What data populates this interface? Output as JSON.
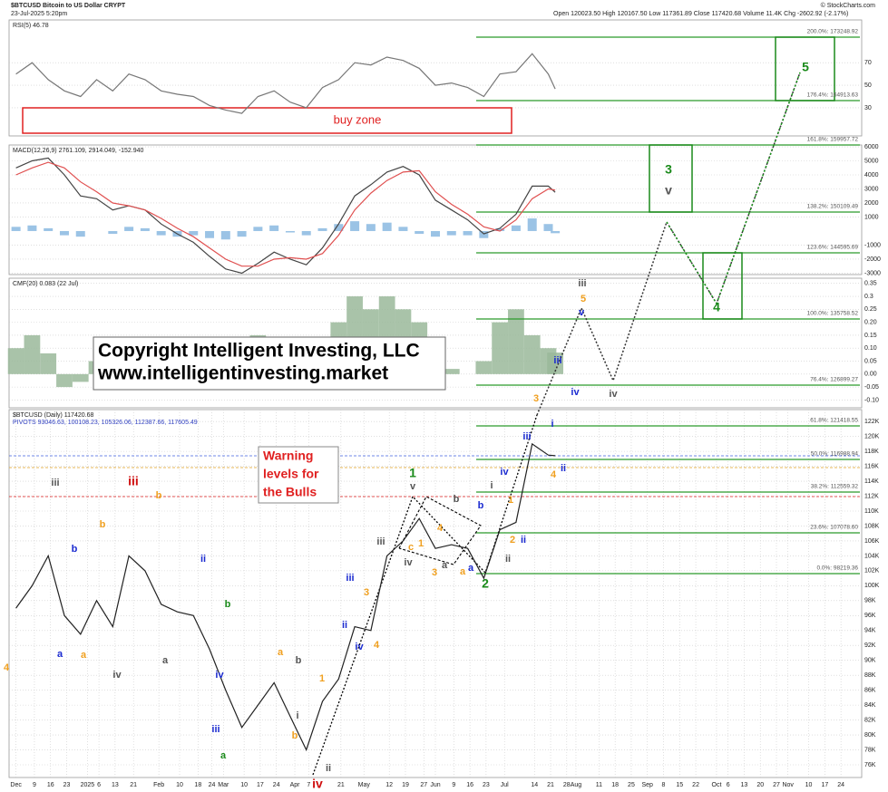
{
  "header": {
    "symbol": "$BTCUSD Bitcoin to US Dollar CRYPT",
    "date": "23-Jul-2025 5:20pm",
    "quote": "Open 120023.50 High 120167.50 Low 117361.89 Close 117420.68 Volume 11.4K Chg -2602.92 (-2.17%)",
    "source": "© StockCharts.com"
  },
  "annotations": {
    "buy_zone": "buy zone",
    "copyright": [
      "Copyright Intelligent Investing, LLC",
      "www.intelligentinvesting.market"
    ],
    "warning": [
      "Warning",
      "levels for",
      "the Bulls"
    ],
    "fib_levels": [
      "200.0%: 173248.92",
      "176.4%: 164913.63",
      "161.8%: 159957.72",
      "138.2%: 150109.49",
      "123.6%: 144595.69",
      "100.0%: 135758.52",
      "76.4%: 126899.27",
      "61.8%: 121418.55",
      "50.0%: 116988.94",
      "38.2%: 112559.32",
      "23.6%: 107078.60",
      "0.0%: 98219.36"
    ],
    "waves": [
      {
        "text": "5",
        "color": "#1a8a1a"
      },
      {
        "text": "3",
        "color": "#1a8a1a"
      },
      {
        "text": "v",
        "color": "#555"
      },
      {
        "text": "4",
        "color": "#1a8a1a"
      },
      {
        "text": "iii",
        "color": "#555"
      },
      {
        "text": "5",
        "color": "#f0a020"
      },
      {
        "text": "v",
        "color": "#1a2ad0"
      },
      {
        "text": "iii",
        "color": "#1a2ad0"
      },
      {
        "text": "iv",
        "color": "#1a2ad0"
      },
      {
        "text": "iv",
        "color": "#555"
      },
      {
        "text": "3",
        "color": "#f0a020"
      },
      {
        "text": "i",
        "color": "#1a2ad0"
      },
      {
        "text": "iii",
        "color": "#1a2ad0"
      },
      {
        "text": "ii",
        "color": "#1a2ad0"
      },
      {
        "text": "4",
        "color": "#f0a020"
      },
      {
        "text": "iv",
        "color": "#1a2ad0"
      },
      {
        "text": "1",
        "color": "#1a8a1a"
      },
      {
        "text": "v",
        "color": "#555"
      },
      {
        "text": "2",
        "color": "#1a8a1a"
      },
      {
        "text": "ii",
        "color": "#555"
      },
      {
        "text": "ii",
        "color": "#1a2ad0"
      },
      {
        "text": "2",
        "color": "#f0a020"
      },
      {
        "text": "1",
        "color": "#f0a020"
      },
      {
        "text": "i",
        "color": "#555"
      },
      {
        "text": "b",
        "color": "#555"
      },
      {
        "text": "b",
        "color": "#1a2ad0"
      },
      {
        "text": "a",
        "color": "#1a2ad0"
      },
      {
        "text": "iv",
        "color": "#555"
      },
      {
        "text": "iii",
        "color": "#555"
      },
      {
        "text": "4",
        "color": "#f0a020"
      },
      {
        "text": "3",
        "color": "#f0a020"
      },
      {
        "text": "iv",
        "color": "#1a2ad0"
      },
      {
        "text": "iii",
        "color": "#1a2ad0"
      },
      {
        "text": "ii",
        "color": "#1a2ad0"
      },
      {
        "text": "1",
        "color": "#f0a020"
      },
      {
        "text": "i",
        "color": "#555"
      },
      {
        "text": "iii",
        "color": "#d01010"
      },
      {
        "text": "iii",
        "color": "#555"
      },
      {
        "text": "iv",
        "color": "#d01010"
      },
      {
        "text": "ii",
        "color": "#555"
      },
      {
        "text": "b",
        "color": "#f0a020"
      },
      {
        "text": "ii",
        "color": "#1a2ad0"
      },
      {
        "text": "iv",
        "color": "#555"
      },
      {
        "text": "a",
        "color": "#555"
      },
      {
        "text": "b",
        "color": "#1a8a1a"
      },
      {
        "text": "iii",
        "color": "#1a2ad0"
      },
      {
        "text": "a",
        "color": "#1a8a1a"
      },
      {
        "text": "iv",
        "color": "#1a2ad0"
      },
      {
        "text": "b",
        "color": "#555"
      },
      {
        "text": "a",
        "color": "#f0a020"
      },
      {
        "text": "b",
        "color": "#f0a020"
      },
      {
        "text": "a",
        "color": "#1a2ad0"
      },
      {
        "text": "a",
        "color": "#f0a020"
      },
      {
        "text": "b",
        "color": "#1a2ad0"
      },
      {
        "text": "b",
        "color": "#f0a020"
      },
      {
        "text": "4",
        "color": "#f0a020"
      },
      {
        "text": "c",
        "color": "#f0a020"
      },
      {
        "text": "a",
        "color": "#555"
      },
      {
        "text": "3",
        "color": "#f0a020"
      },
      {
        "text": "a",
        "color": "#f0a020"
      },
      {
        "text": "4",
        "color": "#f0a020"
      },
      {
        "text": "1",
        "color": "#f0a020"
      }
    ]
  },
  "chart_data": [
    {
      "type": "line",
      "title": "RSI(5) 46.78",
      "x": [
        0,
        7,
        14,
        21,
        28,
        35,
        42,
        49,
        56,
        63,
        70,
        77,
        84,
        91,
        98,
        105,
        112,
        119,
        126,
        133,
        140,
        147,
        154,
        161,
        168,
        175,
        182,
        189,
        196,
        203,
        210,
        217,
        224,
        231,
        234
      ],
      "series": [
        {
          "color": "#777",
          "style": "line",
          "values": [
            60,
            70,
            55,
            45,
            40,
            55,
            45,
            60,
            55,
            45,
            42,
            40,
            32,
            28,
            25,
            40,
            45,
            35,
            30,
            48,
            55,
            70,
            68,
            75,
            72,
            65,
            50,
            52,
            48,
            40,
            60,
            62,
            78,
            60,
            46.78
          ]
        }
      ],
      "ylim": [
        5,
        108
      ],
      "yticks": [
        30,
        50,
        70
      ]
    },
    {
      "type": "line",
      "title": "MACD(12,26,9) 2761.109, 2914.049, -152.940",
      "x": [
        0,
        7,
        14,
        21,
        28,
        35,
        42,
        49,
        56,
        63,
        70,
        77,
        84,
        91,
        98,
        105,
        112,
        119,
        126,
        133,
        140,
        147,
        154,
        161,
        168,
        175,
        182,
        189,
        196,
        203,
        210,
        217,
        224,
        231,
        234
      ],
      "series": [
        {
          "color": "#8ab8e0",
          "style": "bar",
          "values": [
            300,
            400,
            200,
            -300,
            -400,
            0,
            -200,
            300,
            200,
            -300,
            -400,
            -300,
            -500,
            -600,
            -400,
            300,
            400,
            -100,
            -300,
            200,
            500,
            700,
            500,
            600,
            300,
            -200,
            -400,
            -300,
            -300,
            -500,
            200,
            400,
            900,
            500,
            -152.94
          ]
        },
        {
          "color": "#444",
          "style": "line",
          "values": [
            4500,
            5000,
            5200,
            4000,
            2500,
            2300,
            1500,
            1800,
            1500,
            500,
            -200,
            -800,
            -1800,
            -2700,
            -3000,
            -2300,
            -1500,
            -2000,
            -2400,
            -1200,
            500,
            2500,
            3300,
            4200,
            4600,
            4000,
            2200,
            1500,
            800,
            -200,
            200,
            1200,
            3200,
            3200,
            2761.109
          ]
        },
        {
          "color": "#e05050",
          "style": "line",
          "values": [
            4000,
            4500,
            4900,
            4500,
            3500,
            2800,
            2000,
            1800,
            1500,
            900,
            200,
            -400,
            -1200,
            -2000,
            -2500,
            -2500,
            -2000,
            -1900,
            -2000,
            -1600,
            -300,
            1500,
            2700,
            3600,
            4200,
            4300,
            2800,
            1900,
            1200,
            300,
            0,
            800,
            2300,
            3000,
            2914.049
          ]
        }
      ],
      "ylim": [
        -3100,
        6130
      ],
      "yticks": [
        6000,
        5000,
        4000,
        3000,
        2000,
        1000,
        -1000,
        -2000,
        -3000
      ]
    },
    {
      "type": "line",
      "title": "CMF(20) 0.083 (22 Jul)",
      "x": [
        0,
        7,
        14,
        21,
        28,
        35,
        42,
        49,
        56,
        63,
        70,
        77,
        84,
        91,
        98,
        105,
        112,
        119,
        126,
        133,
        140,
        147,
        154,
        161,
        168,
        175,
        182,
        189,
        196,
        203,
        210,
        217,
        224,
        231,
        234
      ],
      "series": [
        {
          "color": "#9ab89a",
          "style": "area",
          "values": [
            0.1,
            0.15,
            0.08,
            -0.05,
            -0.03,
            0.05,
            0,
            0.12,
            0.08,
            0.05,
            0.02,
            0.05,
            0.0,
            -0.02,
            0.05,
            0.15,
            0.1,
            0.05,
            0.05,
            0.1,
            0.2,
            0.3,
            0.25,
            0.3,
            0.25,
            0.2,
            0.05,
            0.02,
            0.0,
            0.05,
            0.2,
            0.25,
            0.15,
            0.1,
            0.083
          ]
        }
      ],
      "ylim": [
        -0.13,
        0.37
      ],
      "yticks": [
        0.35,
        0.3,
        0.25,
        {
          "value": 0.2,
          "label": "0.20"
        },
        0.15,
        {
          "value": 0.1,
          "label": "0.10"
        },
        0.05,
        {
          "value": 0,
          "label": "0.00"
        },
        -0.05,
        {
          "value": -0.1,
          "label": "-0.10"
        }
      ]
    },
    {
      "type": "line",
      "title": "$BTCUSD (Daily) 117420.68",
      "subtitle": "PIVOTS 93046.63, 100108.23, 105326.06, 112387.66, 117605.49",
      "x": [
        0,
        7,
        14,
        21,
        28,
        35,
        42,
        49,
        56,
        63,
        70,
        77,
        84,
        91,
        98,
        105,
        112,
        119,
        126,
        133,
        140,
        147,
        154,
        161,
        168,
        175,
        182,
        189,
        196,
        203,
        210,
        217,
        224,
        231,
        234
      ],
      "series": [
        {
          "color": "#222",
          "style": "line",
          "values": [
            97000,
            100000,
            104000,
            96000,
            93500,
            98000,
            94500,
            104000,
            102000,
            97500,
            96500,
            96000,
            91500,
            86000,
            81000,
            84000,
            87000,
            82500,
            78000,
            84500,
            87500,
            94500,
            94000,
            104000,
            106000,
            109000,
            105000,
            105500,
            105000,
            101000,
            107500,
            108500,
            119000,
            117500,
            117420
          ]
        }
      ],
      "xlim": [
        -3,
        367
      ],
      "xticks": [
        {
          "value": 0,
          "label": "Dec"
        },
        {
          "value": 8,
          "label": "9"
        },
        {
          "value": 15,
          "label": "16"
        },
        {
          "value": 22,
          "label": "23"
        },
        {
          "value": 31,
          "label": "2025"
        },
        {
          "value": 36,
          "label": "6"
        },
        {
          "value": 43,
          "label": "13"
        },
        {
          "value": 51,
          "label": "21"
        },
        {
          "value": 62,
          "label": "Feb"
        },
        {
          "value": 71,
          "label": "10"
        },
        {
          "value": 79,
          "label": "18"
        },
        {
          "value": 85,
          "label": "24"
        },
        {
          "value": 90,
          "label": "Mar"
        },
        {
          "value": 99,
          "label": "10"
        },
        {
          "value": 106,
          "label": "17"
        },
        {
          "value": 113,
          "label": "24"
        },
        {
          "value": 121,
          "label": "Apr"
        },
        {
          "value": 127,
          "label": "7"
        },
        {
          "value": 141,
          "label": "21"
        },
        {
          "value": 151,
          "label": "May"
        },
        {
          "value": 162,
          "label": "12"
        },
        {
          "value": 169,
          "label": "19"
        },
        {
          "value": 177,
          "label": "27"
        },
        {
          "value": 182,
          "label": "Jun"
        },
        {
          "value": 190,
          "label": "9"
        },
        {
          "value": 197,
          "label": "16"
        },
        {
          "value": 204,
          "label": "23"
        },
        {
          "value": 212,
          "label": "Jul"
        },
        {
          "value": 225,
          "label": "14"
        },
        {
          "value": 232,
          "label": "21"
        },
        {
          "value": 239,
          "label": "28"
        },
        {
          "value": 243,
          "label": "Aug"
        },
        {
          "value": 253,
          "label": "11"
        },
        {
          "value": 260,
          "label": "18"
        },
        {
          "value": 267,
          "label": "25"
        },
        {
          "value": 274,
          "label": "Sep"
        },
        {
          "value": 281,
          "label": "8"
        },
        {
          "value": 288,
          "label": "15"
        },
        {
          "value": 295,
          "label": "22"
        },
        {
          "value": 304,
          "label": "Oct"
        },
        {
          "value": 309,
          "label": "6"
        },
        {
          "value": 316,
          "label": "13"
        },
        {
          "value": 323,
          "label": "20"
        },
        {
          "value": 330,
          "label": "27"
        },
        {
          "value": 335,
          "label": "Nov"
        },
        {
          "value": 344,
          "label": "10"
        },
        {
          "value": 351,
          "label": "17"
        },
        {
          "value": 358,
          "label": "24"
        }
      ],
      "ylim": [
        74300,
        123600
      ],
      "yticks": [
        {
          "value": 76000,
          "label": "76K"
        },
        {
          "value": 78000,
          "label": "78K"
        },
        {
          "value": 80000,
          "label": "80K"
        },
        {
          "value": 82000,
          "label": "82K"
        },
        {
          "value": 84000,
          "label": "84K"
        },
        {
          "value": 86000,
          "label": "86K"
        },
        {
          "value": 88000,
          "label": "88K"
        },
        {
          "value": 90000,
          "label": "90K"
        },
        {
          "value": 92000,
          "label": "92K"
        },
        {
          "value": 94000,
          "label": "94K"
        },
        {
          "value": 96000,
          "label": "96K"
        },
        {
          "value": 98000,
          "label": "98K"
        },
        {
          "value": 100000,
          "label": "100K"
        },
        {
          "value": 102000,
          "label": "102K"
        },
        {
          "value": 104000,
          "label": "104K"
        },
        {
          "value": 106000,
          "label": "106K"
        },
        {
          "value": 108000,
          "label": "108K"
        },
        {
          "value": 110000,
          "label": "110K"
        },
        {
          "value": 112000,
          "label": "112K"
        },
        {
          "value": 114000,
          "label": "114K"
        },
        {
          "value": 116000,
          "label": "116K"
        },
        {
          "value": 118000,
          "label": "118K"
        },
        {
          "value": 120000,
          "label": "120K"
        },
        {
          "value": 122000,
          "label": "122K"
        }
      ]
    }
  ]
}
